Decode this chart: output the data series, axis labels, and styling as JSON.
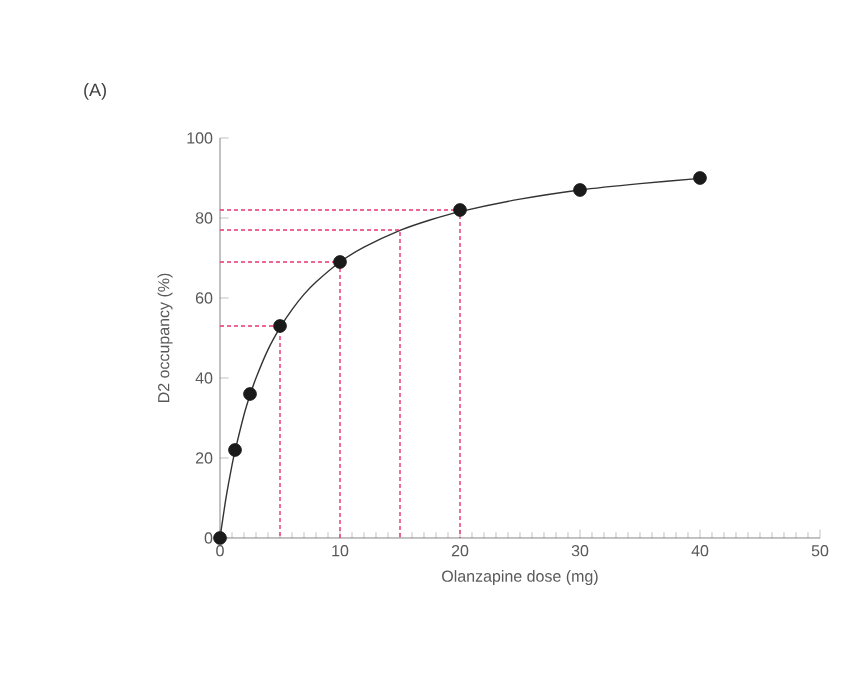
{
  "chart_data": {
    "type": "scatter",
    "xlabel": "Olanzapine dose (mg)",
    "ylabel": "D2 occupancy (%)",
    "annotations": [
      "(A)"
    ],
    "xlim": [
      0,
      50
    ],
    "ylim": [
      0,
      100
    ],
    "xticks": [
      0,
      10,
      20,
      30,
      40,
      50
    ],
    "yticks": [
      0,
      20,
      40,
      60,
      80,
      100
    ],
    "grid": false,
    "series": [
      {
        "type": "line",
        "color": "#333333",
        "line_style": "solid",
        "marker": "none",
        "x": [
          0,
          0.5,
          1,
          1.25,
          2,
          2.5,
          3,
          4,
          5,
          6,
          7,
          8,
          10,
          12,
          15,
          17.5,
          20,
          25,
          30,
          35,
          40
        ],
        "values": [
          0,
          10,
          18.2,
          21.7,
          30.8,
          35.7,
          40,
          47.1,
          52.6,
          57.1,
          60.9,
          64,
          69,
          72.7,
          76.9,
          79.5,
          81.6,
          84.7,
          87,
          88.6,
          89.9
        ]
      },
      {
        "type": "line",
        "color": "#e8336e",
        "line_style": "dashed",
        "marker": "none",
        "x": [
          0,
          5,
          5
        ],
        "values": [
          53,
          53,
          0
        ]
      },
      {
        "type": "line",
        "color": "#e8336e",
        "line_style": "dashed",
        "marker": "none",
        "x": [
          0,
          10,
          10
        ],
        "values": [
          69,
          69,
          0
        ]
      },
      {
        "type": "line",
        "color": "#e8336e",
        "line_style": "dashed",
        "marker": "none",
        "x": [
          0,
          15,
          15
        ],
        "values": [
          77,
          77,
          0
        ]
      },
      {
        "type": "line",
        "color": "#e8336e",
        "line_style": "dashed",
        "marker": "none",
        "x": [
          0,
          20,
          20
        ],
        "values": [
          82,
          82,
          0
        ]
      },
      {
        "color": "#1a1a1a",
        "marker": "circle",
        "x": [
          0,
          1.25,
          2.5,
          5,
          10,
          20,
          30,
          40
        ],
        "values": [
          0,
          22,
          36,
          53,
          69,
          82,
          87,
          90
        ]
      }
    ]
  }
}
